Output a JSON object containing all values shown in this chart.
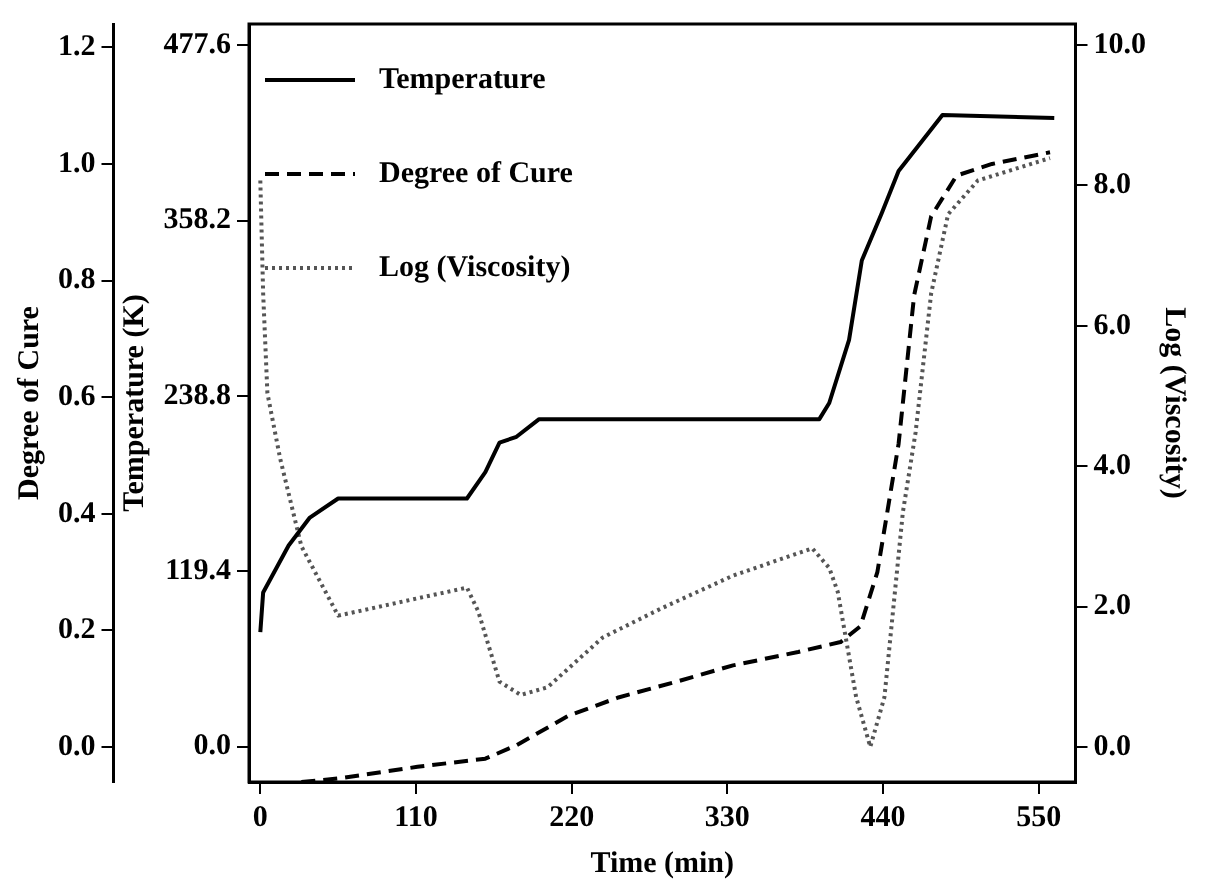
{
  "chart_data": {
    "type": "line",
    "xlabel": "Time (min)",
    "ylabel": "Temperature (K)",
    "y2label": "Log (Viscosity)",
    "y3label": "Degree of Cure",
    "xlim": [
      -8,
      576
    ],
    "xticks": [
      0,
      110,
      220,
      330,
      440,
      550
    ],
    "ylim": [
      -24,
      492
    ],
    "yticks": [
      {
        "value": 0,
        "label": "0.0"
      },
      119.4,
      238.8,
      358.2,
      477.6
    ],
    "y2lim": [
      -0.5,
      10.3
    ],
    "y2ticks": [
      {
        "value": 0,
        "label": "0.0"
      },
      {
        "value": 2,
        "label": "2.0"
      },
      {
        "value": 4,
        "label": "4.0"
      },
      {
        "value": 6,
        "label": "6.0"
      },
      {
        "value": 8,
        "label": "8.0"
      },
      {
        "value": 10,
        "label": "10.0"
      }
    ],
    "y3lim": [
      -0.06,
      1.24
    ],
    "y3ticks": [
      {
        "value": 0,
        "label": "0.0"
      },
      0.2,
      0.4,
      0.6,
      0.8,
      {
        "value": 1,
        "label": "1.0"
      },
      1.2
    ],
    "grid": false,
    "legend": "top left",
    "marker": "none",
    "series": [
      {
        "name": "Temperature",
        "color": "#000000",
        "line_style": "solid",
        "axis": "y",
        "x": [
          0,
          2,
          20,
          35,
          55,
          146,
          159,
          169,
          181,
          197,
          395,
          402,
          416,
          425,
          439,
          451,
          482,
          561
        ],
        "values": [
          78,
          105,
          137,
          156,
          169,
          169,
          187,
          207,
          211,
          223,
          223,
          234,
          277,
          331,
          363,
          392,
          430,
          428
        ]
      },
      {
        "name": "Degree of Cure",
        "color": "#000000",
        "line_style": "dashed",
        "axis": "y3",
        "x": [
          29,
          55,
          111,
          159,
          181,
          218,
          253,
          294,
          334,
          380,
          410,
          424,
          436,
          451,
          462,
          474,
          492,
          517,
          558
        ],
        "values": [
          -0.06,
          -0.054,
          -0.034,
          -0.02,
          0.003,
          0.054,
          0.085,
          0.112,
          0.14,
          0.163,
          0.18,
          0.207,
          0.3,
          0.52,
          0.775,
          0.91,
          0.98,
          1.0,
          1.02
        ]
      },
      {
        "name": "Log (Viscosity)",
        "color": "#555555",
        "line_style": "dotted",
        "axis": "y2",
        "x": [
          0,
          2,
          5,
          14,
          29,
          55,
          146,
          154,
          169,
          184,
          203,
          242,
          284,
          334,
          390,
          402,
          408,
          421,
          431,
          441,
          454,
          463,
          474,
          486,
          507,
          558
        ],
        "values": [
          8.07,
          6.46,
          5.04,
          4.11,
          2.86,
          1.87,
          2.27,
          1.93,
          0.93,
          0.74,
          0.85,
          1.56,
          1.98,
          2.44,
          2.83,
          2.55,
          2.21,
          0.71,
          0.0,
          0.71,
          3.34,
          4.48,
          6.46,
          7.59,
          8.07,
          8.39
        ]
      }
    ]
  }
}
